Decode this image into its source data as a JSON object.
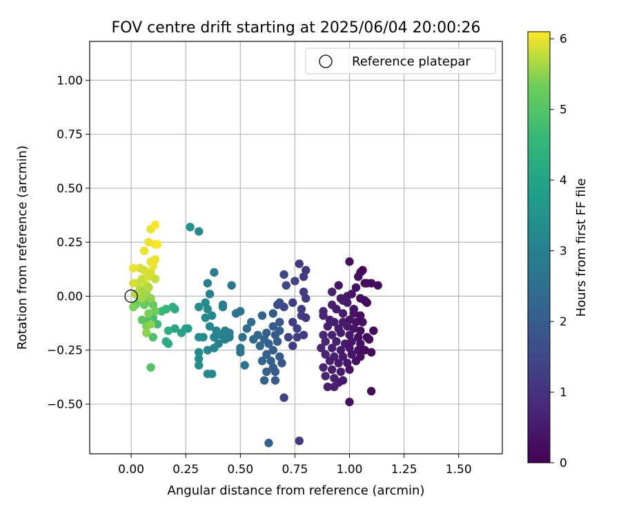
{
  "chart_data": {
    "type": "scatter",
    "title": "FOV centre drift starting at 2025/06/04 20:00:26",
    "xlabel": "Angular distance from reference (arcmin)",
    "ylabel": "Rotation from reference (arcmin)",
    "xlim": [
      -0.19,
      1.7
    ],
    "ylim": [
      -0.73,
      1.18
    ],
    "xticks": [
      "0.00",
      "0.25",
      "0.50",
      "0.75",
      "1.00",
      "1.25",
      "1.50"
    ],
    "yticks": [
      "−0.50",
      "−0.25",
      "0.00",
      "0.25",
      "0.50",
      "0.75",
      "1.00"
    ],
    "grid": true,
    "legend": {
      "placement": "top-right",
      "entries": [
        "Reference platepar"
      ]
    },
    "reference_marker": {
      "x": 0.0,
      "y": 0.0
    },
    "colorbar": {
      "label": "Hours from first FF file",
      "range": [
        0,
        6.1
      ],
      "ticks": [
        "0",
        "1",
        "2",
        "3",
        "4",
        "5",
        "6"
      ],
      "colormap": "viridis"
    },
    "points": [
      [
        1.0,
        0.16,
        0.3
      ],
      [
        1.05,
        0.11,
        0.2
      ],
      [
        1.06,
        0.12,
        0.1
      ],
      [
        1.04,
        0.09,
        0.3
      ],
      [
        1.07,
        0.06,
        0.2
      ],
      [
        1.13,
        0.05,
        0.2
      ],
      [
        1.1,
        0.06,
        0.2
      ],
      [
        1.08,
        0.06,
        0.2
      ],
      [
        1.03,
        0.04,
        0.3
      ],
      [
        0.95,
        0.05,
        0.4
      ],
      [
        0.92,
        0.02,
        0.6
      ],
      [
        0.99,
        0.0,
        0.5
      ],
      [
        1.01,
        0.01,
        0.4
      ],
      [
        0.96,
        -0.01,
        0.5
      ],
      [
        1.05,
        -0.01,
        0.3
      ],
      [
        1.07,
        -0.02,
        0.2
      ],
      [
        1.08,
        -0.03,
        0.2
      ],
      [
        0.97,
        -0.02,
        0.5
      ],
      [
        0.99,
        -0.03,
        0.5
      ],
      [
        0.92,
        -0.04,
        0.6
      ],
      [
        1.02,
        -0.06,
        0.4
      ],
      [
        0.94,
        -0.06,
        0.5
      ],
      [
        0.88,
        -0.07,
        0.7
      ],
      [
        0.88,
        -0.09,
        0.7
      ],
      [
        0.97,
        -0.08,
        0.5
      ],
      [
        1.02,
        -0.08,
        0.4
      ],
      [
        1.05,
        -0.09,
        0.3
      ],
      [
        0.91,
        -0.11,
        0.6
      ],
      [
        0.93,
        -0.12,
        0.6
      ],
      [
        0.97,
        -0.12,
        0.5
      ],
      [
        1.0,
        -0.11,
        0.4
      ],
      [
        1.03,
        -0.12,
        0.3
      ],
      [
        1.06,
        -0.12,
        0.3
      ],
      [
        0.9,
        -0.14,
        0.6
      ],
      [
        0.95,
        -0.15,
        0.5
      ],
      [
        0.99,
        -0.14,
        0.5
      ],
      [
        1.02,
        -0.15,
        0.4
      ],
      [
        1.05,
        -0.16,
        0.3
      ],
      [
        1.11,
        -0.16,
        0.2
      ],
      [
        0.88,
        -0.18,
        0.7
      ],
      [
        0.92,
        -0.18,
        0.6
      ],
      [
        0.96,
        -0.17,
        0.5
      ],
      [
        1.0,
        -0.18,
        0.4
      ],
      [
        1.04,
        -0.19,
        0.3
      ],
      [
        1.08,
        -0.19,
        0.2
      ],
      [
        0.89,
        -0.21,
        0.7
      ],
      [
        0.94,
        -0.21,
        0.6
      ],
      [
        0.98,
        -0.22,
        0.5
      ],
      [
        1.01,
        -0.21,
        0.4
      ],
      [
        1.05,
        -0.22,
        0.3
      ],
      [
        1.09,
        -0.2,
        0.2
      ],
      [
        0.87,
        -0.24,
        0.7
      ],
      [
        0.92,
        -0.24,
        0.6
      ],
      [
        0.96,
        -0.25,
        0.5
      ],
      [
        1.0,
        -0.24,
        0.4
      ],
      [
        1.04,
        -0.25,
        0.3
      ],
      [
        1.07,
        -0.25,
        0.2
      ],
      [
        1.1,
        -0.26,
        0.2
      ],
      [
        0.89,
        -0.27,
        0.7
      ],
      [
        0.93,
        -0.28,
        0.6
      ],
      [
        0.97,
        -0.28,
        0.5
      ],
      [
        1.01,
        -0.27,
        0.4
      ],
      [
        1.05,
        -0.28,
        0.3
      ],
      [
        0.91,
        -0.3,
        0.6
      ],
      [
        0.95,
        -0.31,
        0.5
      ],
      [
        0.99,
        -0.31,
        0.4
      ],
      [
        1.03,
        -0.3,
        0.3
      ],
      [
        0.88,
        -0.33,
        0.7
      ],
      [
        0.92,
        -0.34,
        0.6
      ],
      [
        0.96,
        -0.35,
        0.5
      ],
      [
        1.0,
        -0.34,
        0.4
      ],
      [
        0.89,
        -0.37,
        0.7
      ],
      [
        0.93,
        -0.38,
        0.6
      ],
      [
        0.97,
        -0.39,
        0.5
      ],
      [
        0.95,
        -0.4,
        0.5
      ],
      [
        0.9,
        -0.42,
        0.6
      ],
      [
        0.93,
        -0.42,
        0.6
      ],
      [
        1.1,
        -0.44,
        0.2
      ],
      [
        1.0,
        -0.49,
        0.3
      ],
      [
        0.77,
        0.15,
        1.2
      ],
      [
        0.8,
        0.12,
        1.1
      ],
      [
        0.79,
        0.09,
        1.2
      ],
      [
        0.7,
        0.1,
        1.5
      ],
      [
        0.75,
        0.07,
        1.4
      ],
      [
        0.71,
        0.05,
        1.5
      ],
      [
        0.79,
        0.02,
        1.2
      ],
      [
        0.8,
        -0.01,
        1.2
      ],
      [
        0.74,
        -0.03,
        1.3
      ],
      [
        0.68,
        -0.03,
        1.6
      ],
      [
        0.67,
        -0.04,
        1.7
      ],
      [
        0.7,
        -0.05,
        1.5
      ],
      [
        0.78,
        -0.06,
        1.2
      ],
      [
        0.78,
        -0.09,
        1.2
      ],
      [
        0.8,
        -0.1,
        1.1
      ],
      [
        0.74,
        -0.12,
        1.3
      ],
      [
        0.76,
        -0.15,
        1.3
      ],
      [
        0.79,
        -0.18,
        1.2
      ],
      [
        0.72,
        -0.19,
        1.4
      ],
      [
        0.76,
        -0.19,
        1.3
      ],
      [
        0.74,
        -0.23,
        1.3
      ],
      [
        0.7,
        -0.47,
        1.4
      ],
      [
        0.77,
        -0.67,
        1.2
      ],
      [
        0.61,
        -0.39,
        2.1
      ],
      [
        0.66,
        -0.39,
        2.0
      ],
      [
        0.66,
        -0.35,
        2.0
      ],
      [
        0.62,
        -0.35,
        2.1
      ],
      [
        0.63,
        -0.68,
        2.1
      ],
      [
        0.65,
        -0.33,
        2.0
      ],
      [
        0.69,
        -0.31,
        1.9
      ],
      [
        0.68,
        -0.28,
        2.0
      ],
      [
        0.64,
        -0.3,
        2.1
      ],
      [
        0.6,
        -0.3,
        2.2
      ],
      [
        0.62,
        -0.27,
        2.1
      ],
      [
        0.65,
        -0.25,
        2.0
      ],
      [
        0.59,
        -0.23,
        2.3
      ],
      [
        0.63,
        -0.22,
        2.1
      ],
      [
        0.67,
        -0.21,
        2.0
      ],
      [
        0.61,
        -0.2,
        2.2
      ],
      [
        0.66,
        -0.18,
        2.0
      ],
      [
        0.68,
        -0.16,
        2.0
      ],
      [
        0.62,
        -0.17,
        2.1
      ],
      [
        0.65,
        -0.14,
        2.0
      ],
      [
        0.68,
        -0.12,
        1.9
      ],
      [
        0.65,
        -0.08,
        2.0
      ],
      [
        0.6,
        -0.09,
        2.2
      ],
      [
        0.58,
        -0.18,
        2.3
      ],
      [
        0.56,
        -0.2,
        2.4
      ],
      [
        0.53,
        -0.15,
        2.5
      ],
      [
        0.51,
        -0.19,
        2.5
      ],
      [
        0.5,
        -0.07,
        2.6
      ],
      [
        0.48,
        -0.08,
        2.6
      ],
      [
        0.46,
        0.05,
        2.7
      ],
      [
        0.38,
        0.11,
        2.9
      ],
      [
        0.35,
        0.06,
        3.0
      ],
      [
        0.36,
        0.01,
        3.0
      ],
      [
        0.27,
        0.32,
        3.5
      ],
      [
        0.31,
        0.3,
        3.3
      ],
      [
        0.34,
        -0.03,
        3.3
      ],
      [
        0.31,
        -0.05,
        3.4
      ],
      [
        0.35,
        -0.06,
        3.3
      ],
      [
        0.37,
        -0.09,
        3.2
      ],
      [
        0.34,
        -0.1,
        3.3
      ],
      [
        0.36,
        -0.14,
        3.2
      ],
      [
        0.39,
        -0.16,
        3.1
      ],
      [
        0.41,
        -0.18,
        3.1
      ],
      [
        0.43,
        -0.16,
        3.0
      ],
      [
        0.45,
        -0.17,
        2.9
      ],
      [
        0.43,
        -0.2,
        3.0
      ],
      [
        0.4,
        -0.22,
        3.0
      ],
      [
        0.38,
        -0.24,
        3.1
      ],
      [
        0.35,
        -0.25,
        3.2
      ],
      [
        0.31,
        -0.26,
        3.3
      ],
      [
        0.31,
        -0.29,
        3.4
      ],
      [
        0.31,
        -0.32,
        3.4
      ],
      [
        0.35,
        -0.36,
        3.3
      ],
      [
        0.37,
        -0.36,
        3.2
      ],
      [
        0.45,
        -0.19,
        2.9
      ],
      [
        0.5,
        -0.24,
        2.7
      ],
      [
        0.5,
        -0.26,
        2.7
      ],
      [
        0.52,
        -0.32,
        2.6
      ],
      [
        0.55,
        -0.12,
        2.5
      ],
      [
        0.42,
        -0.05,
        3.0
      ],
      [
        0.42,
        -0.04,
        3.0
      ],
      [
        0.38,
        -0.19,
        3.1
      ],
      [
        0.33,
        -0.19,
        3.3
      ],
      [
        0.31,
        -0.19,
        3.4
      ],
      [
        0.25,
        -0.15,
        3.9
      ],
      [
        0.26,
        -0.15,
        3.9
      ],
      [
        0.23,
        -0.17,
        4.0
      ],
      [
        0.2,
        -0.15,
        4.1
      ],
      [
        0.17,
        -0.16,
        4.3
      ],
      [
        0.16,
        -0.21,
        4.3
      ],
      [
        0.17,
        -0.22,
        4.2
      ],
      [
        0.19,
        -0.05,
        4.4
      ],
      [
        0.2,
        -0.06,
        4.3
      ],
      [
        0.16,
        -0.06,
        4.5
      ],
      [
        0.14,
        -0.07,
        4.6
      ],
      [
        0.12,
        -0.13,
        4.7
      ],
      [
        0.1,
        -0.1,
        4.8
      ],
      [
        0.08,
        -0.11,
        4.9
      ],
      [
        0.1,
        -0.19,
        4.9
      ],
      [
        0.09,
        -0.33,
        5.0
      ],
      [
        0.05,
        -0.11,
        5.1
      ],
      [
        0.02,
        -0.04,
        5.3
      ],
      [
        0.04,
        -0.02,
        5.2
      ],
      [
        0.08,
        -0.02,
        5.1
      ],
      [
        0.06,
        -0.04,
        5.2
      ],
      [
        0.1,
        -0.04,
        5.2
      ],
      [
        0.11,
        -0.07,
        5.3
      ],
      [
        0.08,
        -0.08,
        5.4
      ],
      [
        0.07,
        -0.14,
        5.4
      ],
      [
        0.07,
        -0.17,
        5.5
      ],
      [
        0.09,
        -0.13,
        5.5
      ],
      [
        0.02,
        0.01,
        5.7
      ],
      [
        0.04,
        0.03,
        5.7
      ],
      [
        0.03,
        0.06,
        5.8
      ],
      [
        0.01,
        0.06,
        5.9
      ],
      [
        0.05,
        0.08,
        5.8
      ],
      [
        0.07,
        0.05,
        5.8
      ],
      [
        0.08,
        0.09,
        5.9
      ],
      [
        0.06,
        0.12,
        5.9
      ],
      [
        0.04,
        0.13,
        5.9
      ],
      [
        0.01,
        0.13,
        6.0
      ],
      [
        0.09,
        0.11,
        5.9
      ],
      [
        0.11,
        0.08,
        5.8
      ],
      [
        0.1,
        0.14,
        6.0
      ],
      [
        0.11,
        0.17,
        6.0
      ],
      [
        0.09,
        0.16,
        6.0
      ],
      [
        0.06,
        0.21,
        6.0
      ],
      [
        0.08,
        0.25,
        6.0
      ],
      [
        0.11,
        0.24,
        6.0
      ],
      [
        0.12,
        0.24,
        6.1
      ],
      [
        0.09,
        0.31,
        6.0
      ],
      [
        0.11,
        0.33,
        6.1
      ],
      [
        0.07,
        0.01,
        5.6
      ],
      [
        0.06,
        0.02,
        5.6
      ],
      [
        0.09,
        -0.01,
        5.5
      ],
      [
        0.05,
        -0.01,
        5.6
      ],
      [
        0.01,
        -0.05,
        5.4
      ],
      [
        0.08,
        0.04,
        5.7
      ]
    ]
  }
}
